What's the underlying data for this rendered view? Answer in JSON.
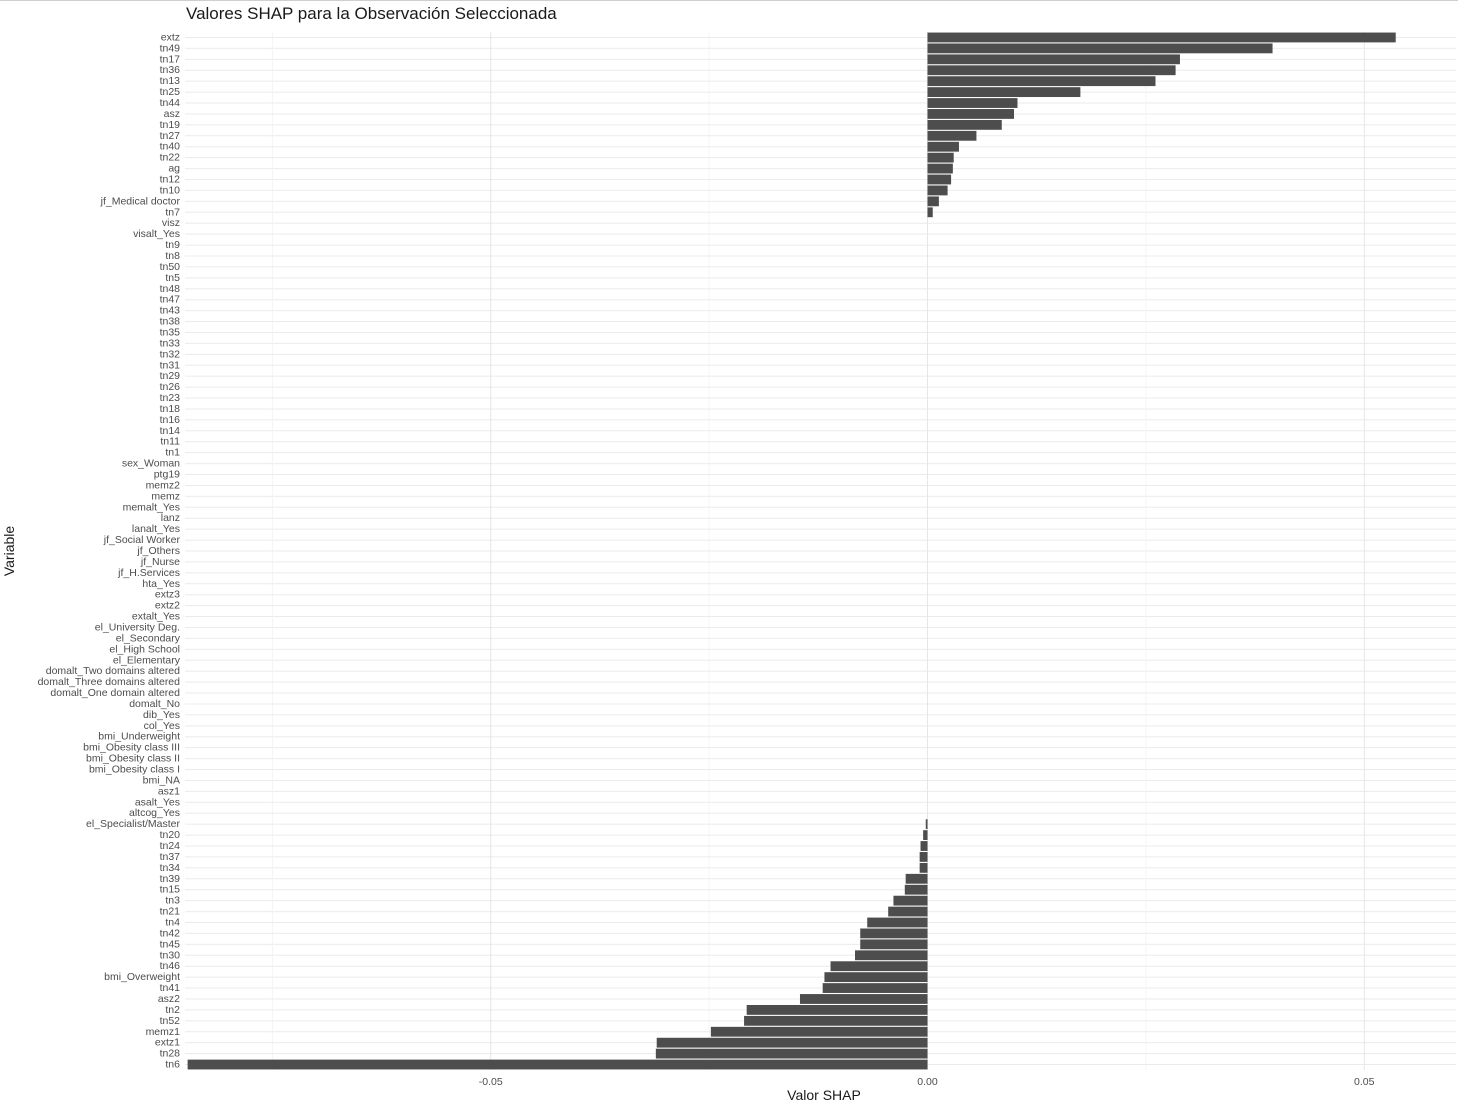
{
  "chart_data": {
    "type": "bar",
    "orientation": "horizontal",
    "title": "Valores SHAP para la Observación Seleccionada",
    "xlabel": "Valor SHAP",
    "ylabel": "Variable",
    "xlim": [
      -0.085,
      0.0605
    ],
    "x_ticks": [
      -0.05,
      0.0,
      0.05
    ],
    "x_tick_labels": [
      "-0.05",
      "0.00",
      "0.05"
    ],
    "grid": true,
    "bar_color": "#4d4d4d",
    "categories": [
      "extz",
      "tn49",
      "tn17",
      "tn36",
      "tn13",
      "tn25",
      "tn44",
      "asz",
      "tn19",
      "tn27",
      "tn40",
      "tn22",
      "ag",
      "tn12",
      "tn10",
      "jf_Medical doctor",
      "tn7",
      "visz",
      "visalt_Yes",
      "tn9",
      "tn8",
      "tn50",
      "tn5",
      "tn48",
      "tn47",
      "tn43",
      "tn38",
      "tn35",
      "tn33",
      "tn32",
      "tn31",
      "tn29",
      "tn26",
      "tn23",
      "tn18",
      "tn16",
      "tn14",
      "tn11",
      "tn1",
      "sex_Woman",
      "ptg19",
      "memz2",
      "memz",
      "memalt_Yes",
      "lanz",
      "lanalt_Yes",
      "jf_Social Worker",
      "jf_Others",
      "jf_Nurse",
      "jf_H.Services",
      "hta_Yes",
      "extz3",
      "extz2",
      "extalt_Yes",
      "el_University Deg.",
      "el_Secondary",
      "el_High School",
      "el_Elementary",
      "domalt_Two domains altered",
      "domalt_Three domains altered",
      "domalt_One domain altered",
      "domalt_No",
      "dib_Yes",
      "col_Yes",
      "bmi_Underweight",
      "bmi_Obesity class III",
      "bmi_Obesity class II",
      "bmi_Obesity class I",
      "bmi_NA",
      "asz1",
      "asalt_Yes",
      "altcog_Yes",
      "el_Specialist/Master",
      "tn20",
      "tn24",
      "tn37",
      "tn34",
      "tn39",
      "tn15",
      "tn3",
      "tn21",
      "tn4",
      "tn42",
      "tn45",
      "tn30",
      "tn46",
      "bmi_Overweight",
      "tn41",
      "asz2",
      "tn2",
      "tn52",
      "memz1",
      "extz1",
      "tn28",
      "tn6"
    ],
    "values": [
      0.0536,
      0.0395,
      0.0289,
      0.0284,
      0.0261,
      0.0175,
      0.0103,
      0.0099,
      0.0085,
      0.0056,
      0.0036,
      0.003,
      0.0029,
      0.0027,
      0.0023,
      0.0013,
      0.0006,
      0,
      0,
      0,
      0,
      0,
      0,
      0,
      0,
      0,
      0,
      0,
      0,
      0,
      0,
      0,
      0,
      0,
      0,
      0,
      0,
      0,
      0,
      0,
      0,
      0,
      0,
      0,
      0,
      0,
      0,
      0,
      0,
      0,
      0,
      0,
      0,
      0,
      0,
      0,
      0,
      0,
      0,
      0,
      0,
      0,
      0,
      0,
      0,
      0,
      0,
      0,
      0,
      0,
      0,
      0,
      -0.0002,
      -0.0005,
      -0.0008,
      -0.0009,
      -0.0009,
      -0.0025,
      -0.0026,
      -0.0039,
      -0.0045,
      -0.0069,
      -0.0077,
      -0.0077,
      -0.0083,
      -0.0111,
      -0.0118,
      -0.012,
      -0.0146,
      -0.0207,
      -0.021,
      -0.0248,
      -0.031,
      -0.0311,
      -0.0847
    ]
  }
}
